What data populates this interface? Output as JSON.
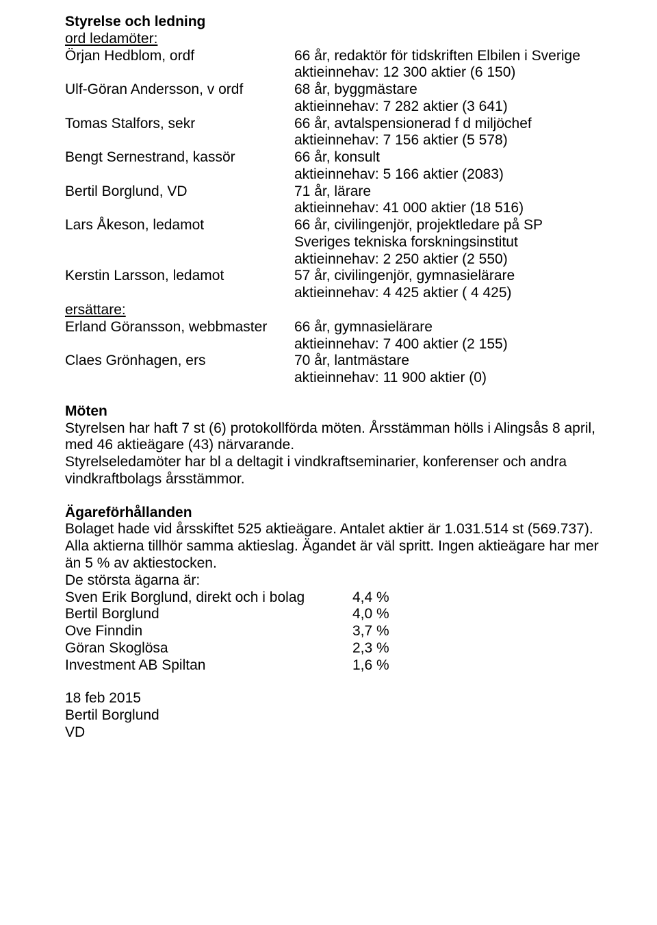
{
  "section1": {
    "heading": "Styrelse och ledning",
    "sub1": "ord ledamöter:",
    "rows": [
      {
        "left": "Örjan Hedblom, ordf",
        "right1": "66 år, redaktör för tidskriften Elbilen i Sverige",
        "right2": "aktieinnehav: 12 300 aktier (6 150)"
      },
      {
        "left": "Ulf-Göran Andersson, v ordf",
        "right1": "68 år, byggmästare",
        "right2": "aktieinnehav: 7 282 aktier (3 641)"
      },
      {
        "left": "Tomas Stalfors, sekr",
        "right1": "66 år, avtalspensionerad f d miljöchef",
        "right2": "aktieinnehav: 7 156 aktier (5 578)"
      },
      {
        "left": "Bengt Sernestrand, kassör",
        "right1": "66 år, konsult",
        "right2": "aktieinnehav: 5 166 aktier (2083)"
      },
      {
        "left": "Bertil Borglund, VD",
        "right1": "71 år, lärare",
        "right2": "aktieinnehav: 41 000 aktier (18 516)"
      },
      {
        "left": "Lars Åkeson, ledamot",
        "right1": "66 år, civilingenjör, projektledare på SP",
        "right2": "Sveriges tekniska forskningsinstitut",
        "right3": "aktieinnehav: 2 250 aktier (2 550)"
      },
      {
        "left": "Kerstin Larsson, ledamot",
        "right1": "57 år, civilingenjör, gymnasielärare",
        "right2": "aktieinnehav: 4 425 aktier ( 4 425)"
      }
    ],
    "sub2": "ersättare:",
    "rows2": [
      {
        "left": "Erland Göransson, webbmaster",
        "right1": "66 år, gymnasielärare",
        "right2": "aktieinnehav: 7 400 aktier (2 155)"
      },
      {
        "left": "Claes Grönhagen, ers",
        "right1": "70 år, lantmästare",
        "right2": "aktieinnehav: 11 900 aktier (0)"
      }
    ]
  },
  "section2": {
    "heading": "Möten",
    "line1": "Styrelsen har haft 7 st (6) protokollförda möten. Årsstämman hölls i Alingsås 8 april,",
    "line2": "med 46 aktieägare (43) närvarande.",
    "line3": "Styrelseledamöter har bl a deltagit i vindkraftseminarier, konferenser och andra",
    "line4": "vindkraftbolags årsstämmor."
  },
  "section3": {
    "heading": "Ägareförhållanden",
    "line1": "Bolaget hade vid årsskiftet 525 aktieägare. Antalet aktier är 1.031.514 st (569.737).",
    "line2": "Alla aktierna tillhör samma aktieslag. Ägandet är väl spritt. Ingen aktieägare har mer",
    "line3": "än 5 % av aktiestocken.",
    "line4": "De största ägarna är:",
    "owners": [
      {
        "name": "Sven Erik Borglund, direkt och i bolag",
        "pct": "4,4 %"
      },
      {
        "name": "Bertil Borglund",
        "pct": "4,0 %"
      },
      {
        "name": "Ove Finndin",
        "pct": "3,7 %"
      },
      {
        "name": "Göran Skoglösa",
        "pct": "2,3 %"
      },
      {
        "name": "Investment AB Spiltan",
        "pct": "1,6 %"
      }
    ]
  },
  "footer": {
    "date": "18 feb 2015",
    "name": "Bertil Borglund",
    "title": "VD"
  }
}
